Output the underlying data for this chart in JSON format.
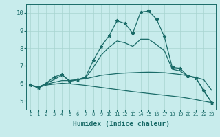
{
  "xlabel": "Humidex (Indice chaleur)",
  "bg_color": "#c8ecec",
  "grid_color": "#a8d4d0",
  "line_color": "#1a6b68",
  "xlim": [
    -0.5,
    23.5
  ],
  "ylim": [
    4.5,
    10.5
  ],
  "x_ticks": [
    0,
    1,
    2,
    3,
    4,
    5,
    6,
    7,
    8,
    9,
    10,
    11,
    12,
    13,
    14,
    15,
    16,
    17,
    18,
    19,
    20,
    21,
    22,
    23
  ],
  "y_ticks": [
    5,
    6,
    7,
    8,
    9,
    10
  ],
  "series": [
    {
      "x": [
        0,
        1,
        2,
        3,
        4,
        5,
        6,
        7,
        8,
        9,
        10,
        11,
        12,
        13,
        14,
        15,
        16,
        17,
        18,
        19,
        20,
        21,
        22,
        23
      ],
      "y": [
        5.9,
        5.75,
        6.0,
        6.35,
        6.5,
        6.1,
        6.2,
        6.35,
        7.3,
        8.1,
        8.7,
        9.55,
        9.4,
        8.85,
        10.05,
        10.1,
        9.65,
        8.65,
        6.9,
        6.85,
        6.4,
        6.3,
        5.6,
        4.9
      ],
      "has_markers": true,
      "linewidth": 0.9
    },
    {
      "x": [
        0,
        1,
        2,
        3,
        4,
        5,
        6,
        7,
        8,
        9,
        10,
        11,
        12,
        13,
        14,
        15,
        16,
        17,
        18,
        19,
        20,
        21,
        22,
        23
      ],
      "y": [
        5.9,
        5.75,
        6.0,
        6.2,
        6.45,
        6.15,
        6.2,
        6.3,
        6.9,
        7.6,
        8.05,
        8.4,
        8.3,
        8.1,
        8.5,
        8.5,
        8.2,
        7.85,
        6.8,
        6.7,
        6.4,
        6.3,
        5.55,
        4.9
      ],
      "has_markers": false,
      "linewidth": 0.9
    },
    {
      "x": [
        0,
        1,
        2,
        3,
        4,
        5,
        6,
        7,
        8,
        9,
        10,
        11,
        12,
        13,
        14,
        15,
        16,
        17,
        18,
        19,
        20,
        21,
        22,
        23
      ],
      "y": [
        5.9,
        5.8,
        5.95,
        6.05,
        6.15,
        6.15,
        6.2,
        6.25,
        6.35,
        6.45,
        6.5,
        6.55,
        6.58,
        6.6,
        6.62,
        6.63,
        6.62,
        6.6,
        6.55,
        6.5,
        6.42,
        6.33,
        6.2,
        5.6
      ],
      "has_markers": false,
      "linewidth": 0.9
    },
    {
      "x": [
        0,
        1,
        2,
        3,
        4,
        5,
        6,
        7,
        8,
        9,
        10,
        11,
        12,
        13,
        14,
        15,
        16,
        17,
        18,
        19,
        20,
        21,
        22,
        23
      ],
      "y": [
        5.9,
        5.75,
        5.9,
        5.95,
        6.0,
        5.97,
        5.93,
        5.88,
        5.82,
        5.76,
        5.7,
        5.64,
        5.58,
        5.52,
        5.47,
        5.42,
        5.37,
        5.32,
        5.27,
        5.22,
        5.15,
        5.07,
        4.98,
        4.9
      ],
      "has_markers": false,
      "linewidth": 0.9
    }
  ]
}
